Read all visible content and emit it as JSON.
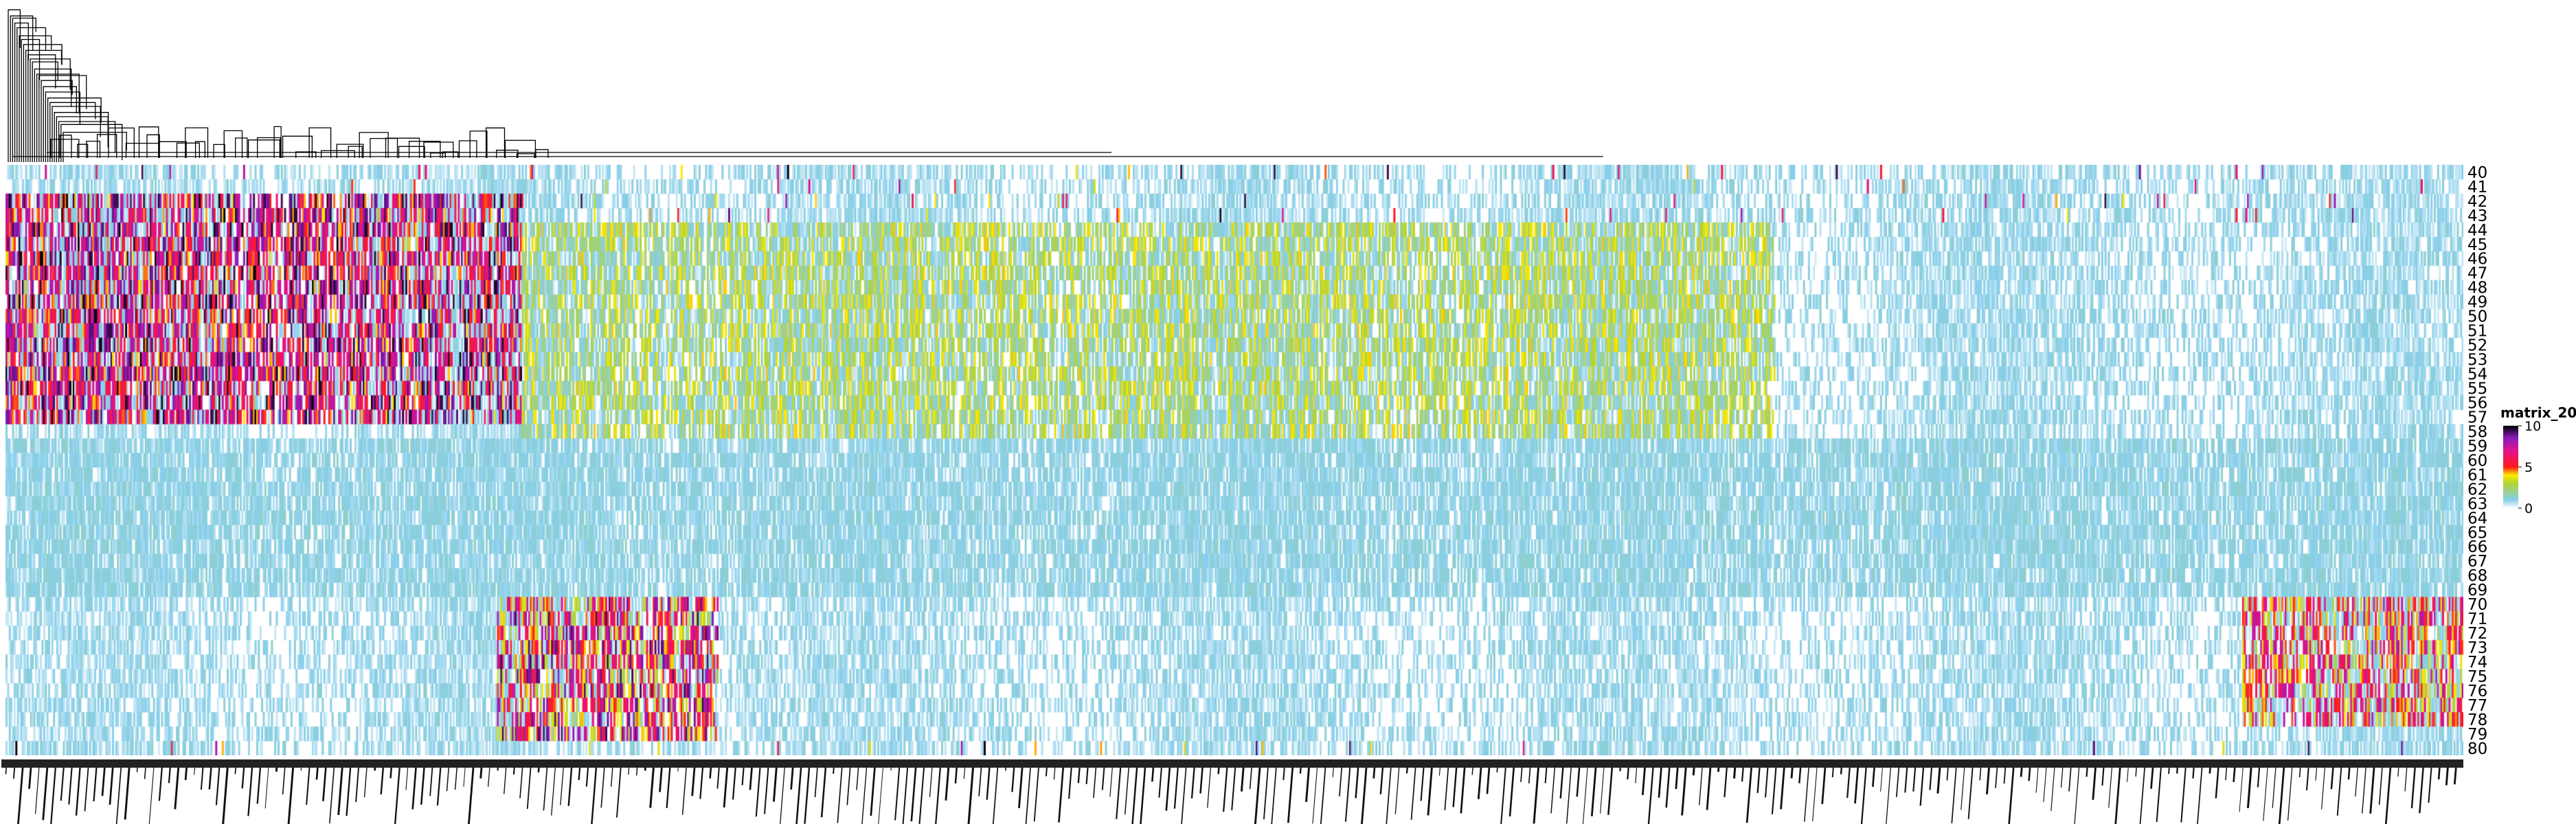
{
  "chart_data": {
    "type": "heatmap",
    "title": "",
    "xlabel": "",
    "ylabel": "",
    "rows": [
      "40",
      "41",
      "42",
      "43",
      "44",
      "45",
      "46",
      "47",
      "48",
      "49",
      "50",
      "51",
      "52",
      "53",
      "54",
      "55",
      "56",
      "57",
      "58",
      "59",
      "60",
      "61",
      "62",
      "63",
      "64",
      "65",
      "66",
      "67",
      "68",
      "69",
      "70",
      "71",
      "72",
      "73",
      "74",
      "75",
      "76",
      "77",
      "78",
      "79",
      "80"
    ],
    "column_count": 1500,
    "column_labels_note": "dense rotated sample labels (unreadable at this resolution)",
    "dendrogram": "column",
    "value_range": [
      0,
      10
    ],
    "legend": {
      "title": "matrix_20",
      "ticks": [
        10,
        5,
        0
      ],
      "placement": "right"
    },
    "colormap": [
      {
        "value": 0,
        "color": "#ffffff"
      },
      {
        "value": 1,
        "color": "#87ceeb"
      },
      {
        "value": 3,
        "color": "#b3d335"
      },
      {
        "value": 4,
        "color": "#ffea00"
      },
      {
        "value": 5,
        "color": "#ff1a1a"
      },
      {
        "value": 7,
        "color": "#e0128f"
      },
      {
        "value": 8.5,
        "color": "#8a1bbd"
      },
      {
        "value": 10,
        "color": "#000000"
      }
    ],
    "block_pattern": [
      {
        "columns_fraction": [
          0.0,
          0.21
        ],
        "dominant_rows": [
          "42",
          "43",
          "44",
          "45",
          "46",
          "47",
          "48",
          "49",
          "50",
          "51",
          "52",
          "53",
          "54",
          "55",
          "56",
          "57"
        ],
        "level": "high (5-10)"
      },
      {
        "columns_fraction": [
          0.21,
          0.72
        ],
        "dominant_rows": [
          "44",
          "45",
          "46",
          "47",
          "48",
          "49",
          "50",
          "51",
          "52",
          "53",
          "54",
          "55",
          "56",
          "57",
          "58"
        ],
        "level": "low-mid (1-4)"
      },
      {
        "columns_fraction": [
          0.2,
          0.29
        ],
        "dominant_rows": [
          "70",
          "71",
          "72",
          "73",
          "74",
          "75",
          "76",
          "77",
          "78",
          "79"
        ],
        "level": "mid-high (3-10)"
      },
      {
        "columns_fraction": [
          0.91,
          1.0
        ],
        "dominant_rows": [
          "70",
          "71",
          "72",
          "73",
          "74",
          "75",
          "76",
          "77",
          "78"
        ],
        "level": "mid-high (3-8)"
      },
      {
        "columns_fraction": [
          0.0,
          1.0
        ],
        "dominant_rows": [
          "59",
          "60",
          "61",
          "62",
          "63",
          "64",
          "65",
          "66",
          "67",
          "68",
          "69"
        ],
        "level": "low (~1)"
      }
    ]
  }
}
